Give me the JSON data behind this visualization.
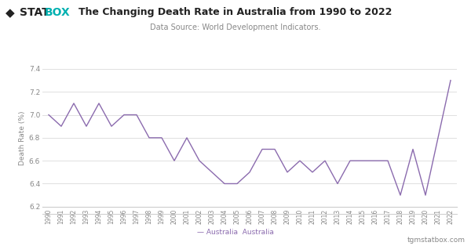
{
  "title": "The Changing Death Rate in Australia from 1990 to 2022",
  "subtitle": "Data Source: World Development Indicators.",
  "ylabel": "Death Rate (%)",
  "footer_left": "— Australia",
  "footer_right": "tgmstatbox.com",
  "line_color": "#8B6BAE",
  "background_color": "#ffffff",
  "grid_color": "#e0e0e0",
  "ylim": [
    6.2,
    7.4
  ],
  "yticks": [
    6.2,
    6.4,
    6.6,
    6.8,
    7.0,
    7.2,
    7.4
  ],
  "years": [
    1990,
    1991,
    1992,
    1993,
    1994,
    1995,
    1996,
    1997,
    1998,
    1999,
    2000,
    2001,
    2002,
    2003,
    2004,
    2005,
    2006,
    2007,
    2008,
    2009,
    2010,
    2011,
    2012,
    2013,
    2014,
    2015,
    2016,
    2017,
    2018,
    2019,
    2020,
    2021,
    2022
  ],
  "values": [
    7.0,
    6.9,
    7.1,
    6.9,
    7.1,
    6.9,
    7.0,
    7.0,
    6.8,
    6.8,
    6.6,
    6.8,
    6.6,
    6.5,
    6.4,
    6.4,
    6.5,
    6.7,
    6.7,
    6.5,
    6.6,
    6.5,
    6.6,
    6.4,
    6.6,
    6.6,
    6.6,
    6.6,
    6.3,
    6.7,
    6.3,
    6.8,
    7.3
  ],
  "logo_diamond_color": "#222222",
  "logo_stat_color": "#222222",
  "logo_box_color": "#00b0b0",
  "title_color": "#222222",
  "subtitle_color": "#888888",
  "tick_color": "#888888",
  "ylabel_color": "#888888",
  "footer_color": "#888888",
  "bottom_line_color": "#cccccc"
}
